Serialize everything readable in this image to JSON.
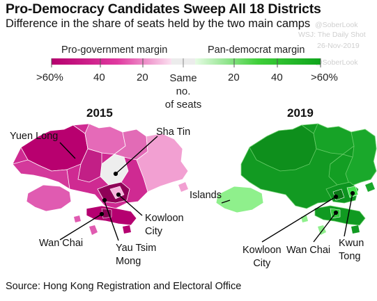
{
  "header": {
    "title": "Pro-Democracy Candidates Sweep All 18 Districts",
    "subtitle": "Difference in the share of seats held by the two main camps"
  },
  "watermarks": {
    "handle_top": "@SoberLook",
    "wsj": "WSJ: The Daily Shot",
    "date": "26-Nov-2019",
    "handle_bottom": "@SoberLook"
  },
  "legend": {
    "left_title": "Pro-government margin",
    "right_title": "Pan-democrat margin",
    "ticks_left": [
      ">60%",
      "40",
      "20"
    ],
    "ticks_right": [
      "20",
      "40",
      ">60%"
    ],
    "center_line1": "Same no.",
    "center_line2": "of seats",
    "colors": {
      "pro_gov_strong": "#b5006e",
      "pro_gov_mid": "#e03aa0",
      "pro_gov_light": "#f3a6d6",
      "neutral": "#eeeeee",
      "pan_dem_light": "#9ff09a",
      "pan_dem_mid": "#3fcf3a",
      "pan_dem_strong": "#0f9a1c"
    }
  },
  "maps": {
    "left": {
      "year": "2015",
      "labels": {
        "yuen_long": "Yuen Long",
        "sha_tin": "Sha Tin",
        "kowloon_city_1": "Kowloon",
        "kowloon_city_2": "City",
        "wan_chai": "Wan Chai",
        "yau_tsim_mong_1": "Yau Tsim",
        "yau_tsim_mong_2": "Mong"
      }
    },
    "right": {
      "year": "2019",
      "labels": {
        "islands": "Islands",
        "kowloon_city_1": "Kowloon",
        "kowloon_city_2": "City",
        "wan_chai": "Wan Chai",
        "kwun_tong_1": "Kwun",
        "kwun_tong_2": "Tong"
      }
    }
  },
  "source": "Source: Hong Kong Registration and Electoral Office"
}
